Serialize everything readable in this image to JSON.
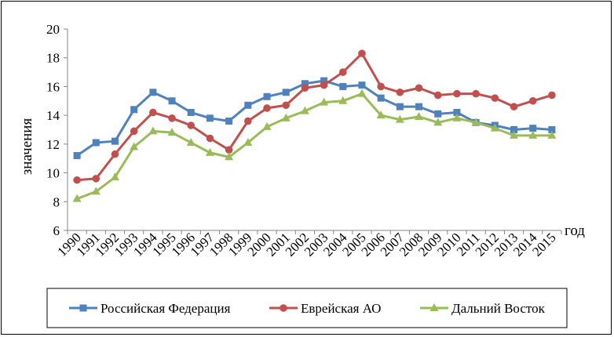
{
  "chart_data": {
    "type": "line",
    "title": "",
    "xlabel": "год",
    "ylabel": "значения",
    "ylim": [
      6,
      20
    ],
    "yticks": [
      6,
      8,
      10,
      12,
      14,
      16,
      18,
      20
    ],
    "grid": "none",
    "legend_position": "bottom",
    "categories": [
      "1990",
      "1991",
      "1992",
      "1993",
      "1994",
      "1995",
      "1996",
      "1997",
      "1998",
      "1999",
      "2000",
      "2001",
      "2002",
      "2003",
      "2004",
      "2005",
      "2006",
      "2007",
      "2008",
      "2009",
      "2010",
      "2011",
      "2012",
      "2013",
      "2014",
      "2015"
    ],
    "series": [
      {
        "name": "Российская Федерация",
        "color": "#4F81BD",
        "marker": "square",
        "values": [
          11.2,
          12.1,
          12.2,
          14.4,
          15.6,
          15.0,
          14.2,
          13.8,
          13.6,
          14.7,
          15.3,
          15.6,
          16.2,
          16.4,
          16.0,
          16.1,
          15.2,
          14.6,
          14.6,
          14.1,
          14.2,
          13.5,
          13.3,
          13.0,
          13.1,
          13.0
        ]
      },
      {
        "name": "Еврейская АО",
        "color": "#C0504D",
        "marker": "circle",
        "values": [
          9.5,
          9.6,
          11.3,
          12.9,
          14.2,
          13.8,
          13.3,
          12.4,
          11.6,
          13.6,
          14.5,
          14.7,
          15.9,
          16.1,
          17.0,
          18.3,
          16.0,
          15.6,
          15.9,
          15.4,
          15.5,
          15.5,
          15.2,
          14.6,
          15.0,
          15.4
        ]
      },
      {
        "name": "Дальний Восток",
        "color": "#9BBB59",
        "marker": "triangle",
        "values": [
          8.2,
          8.7,
          9.7,
          11.8,
          12.9,
          12.8,
          12.1,
          11.4,
          11.1,
          12.1,
          13.2,
          13.8,
          14.3,
          14.9,
          15.0,
          15.5,
          14.0,
          13.7,
          13.9,
          13.5,
          13.8,
          13.5,
          13.1,
          12.6,
          12.6,
          12.6
        ]
      }
    ]
  }
}
